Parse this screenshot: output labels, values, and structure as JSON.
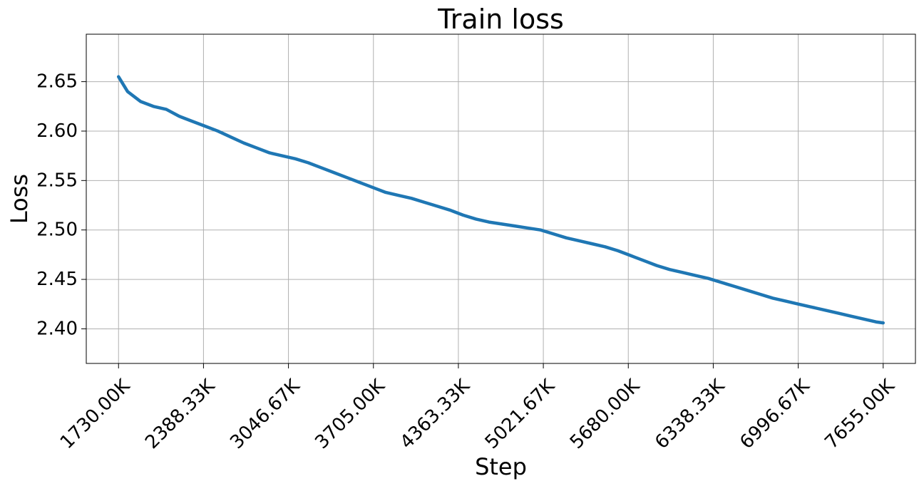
{
  "chart_data": {
    "type": "line",
    "title": "Train loss",
    "xlabel": "Step",
    "ylabel": "Loss",
    "grid": true,
    "line_color": "#1f77b4",
    "xlim": [
      1480,
      7905
    ],
    "ylim": [
      2.365,
      2.698
    ],
    "x_ticks": [
      1730,
      2388.33,
      3046.67,
      3705,
      4363.33,
      5021.67,
      5680,
      6338.33,
      6996.67,
      7655
    ],
    "x_tick_labels": [
      "1730.00K",
      "2388.33K",
      "3046.67K",
      "3705.00K",
      "4363.33K",
      "5021.67K",
      "5680.00K",
      "6338.33K",
      "6996.67K",
      "7655.00K"
    ],
    "y_ticks": [
      2.4,
      2.45,
      2.5,
      2.55,
      2.6,
      2.65
    ],
    "y_tick_labels": [
      "2.40",
      "2.45",
      "2.50",
      "2.55",
      "2.60",
      "2.65"
    ],
    "series": [
      {
        "x": [
          1730,
          1800,
          1900,
          2000,
          2100,
          2200,
          2300,
          2400,
          2500,
          2600,
          2700,
          2800,
          2900,
          3000,
          3100,
          3200,
          3300,
          3400,
          3500,
          3600,
          3700,
          3800,
          3900,
          4000,
          4100,
          4200,
          4300,
          4400,
          4500,
          4600,
          4700,
          4800,
          4900,
          5000,
          5100,
          5200,
          5300,
          5400,
          5500,
          5600,
          5700,
          5800,
          5900,
          6000,
          6100,
          6200,
          6300,
          6400,
          6500,
          6600,
          6700,
          6800,
          6900,
          7000,
          7100,
          7200,
          7300,
          7400,
          7500,
          7600,
          7655
        ],
        "y": [
          2.655,
          2.64,
          2.63,
          2.625,
          2.622,
          2.615,
          2.61,
          2.605,
          2.6,
          2.594,
          2.588,
          2.583,
          2.578,
          2.575,
          2.572,
          2.568,
          2.563,
          2.558,
          2.553,
          2.548,
          2.543,
          2.538,
          2.535,
          2.532,
          2.528,
          2.524,
          2.52,
          2.515,
          2.511,
          2.508,
          2.506,
          2.504,
          2.502,
          2.5,
          2.496,
          2.492,
          2.489,
          2.486,
          2.483,
          2.479,
          2.474,
          2.469,
          2.464,
          2.46,
          2.457,
          2.454,
          2.451,
          2.447,
          2.443,
          2.439,
          2.435,
          2.431,
          2.428,
          2.425,
          2.422,
          2.419,
          2.416,
          2.413,
          2.41,
          2.407,
          2.406
        ]
      }
    ]
  }
}
